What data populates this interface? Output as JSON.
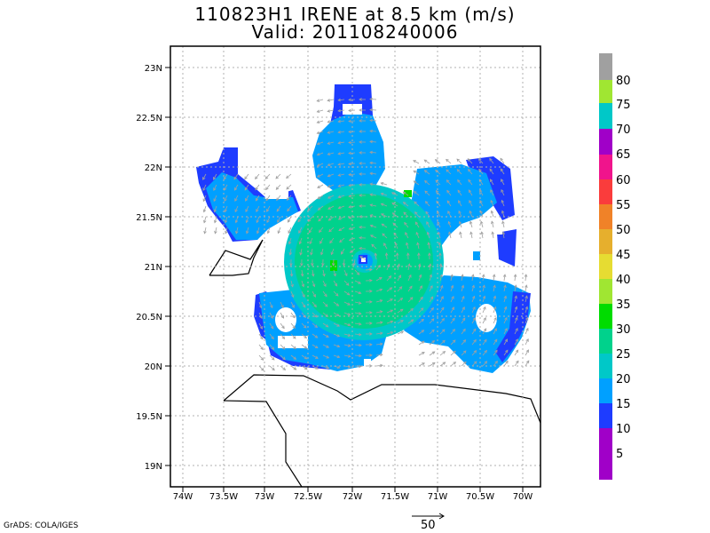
{
  "title": {
    "line1": "110823H1 IRENE at 8.5 km (m/s)",
    "line2": "Valid: 201108240006"
  },
  "axes": {
    "y_ticks": [
      "23N",
      "22.5N",
      "22N",
      "21.5N",
      "21N",
      "20.5N",
      "20N",
      "19.5N",
      "19N"
    ],
    "x_ticks": [
      "74W",
      "73.5W",
      "73W",
      "72.5W",
      "72W",
      "71.5W",
      "71W",
      "70.5W",
      "70W"
    ]
  },
  "colorbar": {
    "labels": [
      "80",
      "75",
      "70",
      "65",
      "60",
      "55",
      "50",
      "45",
      "40",
      "35",
      "30",
      "25",
      "20",
      "15",
      "10",
      "5"
    ],
    "colors": [
      "#a0a0a0",
      "#a0e632",
      "#00c8c8",
      "#a000c8",
      "#f0148c",
      "#fa3c3c",
      "#f08228",
      "#e6af2d",
      "#e6dc32",
      "#a0e632",
      "#00dc00",
      "#00d28c",
      "#00c8c8",
      "#00a0ff",
      "#1e3cff",
      "#a000c8"
    ]
  },
  "reference_vector": {
    "label": "50"
  },
  "credit": "GrADS: COLA/IGES",
  "colors": {
    "wind_10_15": "#1e3cff",
    "wind_15_20": "#00a0ff",
    "wind_20_25": "#00c8c8",
    "wind_25_30": "#00d28c",
    "wind_30_35": "#00dc00",
    "vector": "#a0a0a0"
  }
}
